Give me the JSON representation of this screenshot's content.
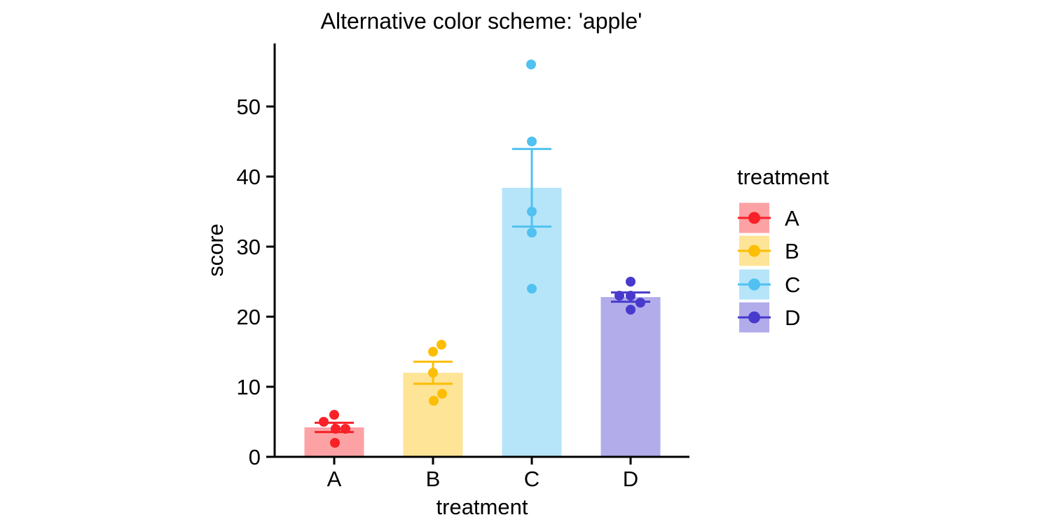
{
  "figure": {
    "background": "#ffffff",
    "text_color": "#000000",
    "axis_color": "#000000"
  },
  "chart_data": {
    "type": "bar",
    "title": "Alternative color scheme: 'apple'",
    "xlabel": "treatment",
    "ylabel": "score",
    "categories": [
      "A",
      "B",
      "C",
      "D"
    ],
    "yticks": [
      0,
      10,
      20,
      30,
      40,
      50
    ],
    "ylim": [
      0,
      59
    ],
    "grid": false,
    "error_bar": "sem",
    "bar_fill_opacity": 0.42,
    "series": [
      {
        "name": "A",
        "color": "#F82128",
        "mean": 4.2,
        "sem": 0.66,
        "points": [
          {
            "value": 6,
            "dx": 0
          },
          {
            "value": 5,
            "dx": -15
          },
          {
            "value": 4,
            "dx": 2
          },
          {
            "value": 4,
            "dx": 16
          },
          {
            "value": 2,
            "dx": 1
          }
        ]
      },
      {
        "name": "B",
        "color": "#FCBE05",
        "mean": 12.0,
        "sem": 1.58,
        "points": [
          {
            "value": 16,
            "dx": 12
          },
          {
            "value": 15,
            "dx": 0
          },
          {
            "value": 12,
            "dx": 0
          },
          {
            "value": 9,
            "dx": 13
          },
          {
            "value": 8,
            "dx": 1
          }
        ]
      },
      {
        "name": "C",
        "color": "#50C1F0",
        "mean": 38.4,
        "sem": 5.54,
        "points": [
          {
            "value": 56,
            "dx": -1
          },
          {
            "value": 45,
            "dx": 0
          },
          {
            "value": 35,
            "dx": 0
          },
          {
            "value": 32,
            "dx": 0
          },
          {
            "value": 24,
            "dx": 0
          }
        ]
      },
      {
        "name": "D",
        "color": "#483ACC",
        "mean": 22.8,
        "sem": 0.66,
        "points": [
          {
            "value": 25,
            "dx": 0
          },
          {
            "value": 23,
            "dx": -16
          },
          {
            "value": 23,
            "dx": 0
          },
          {
            "value": 22,
            "dx": 14
          },
          {
            "value": 21,
            "dx": 0
          }
        ]
      }
    ],
    "legend": {
      "title": "treatment",
      "position": "right",
      "entries": [
        "A",
        "B",
        "C",
        "D"
      ]
    }
  }
}
